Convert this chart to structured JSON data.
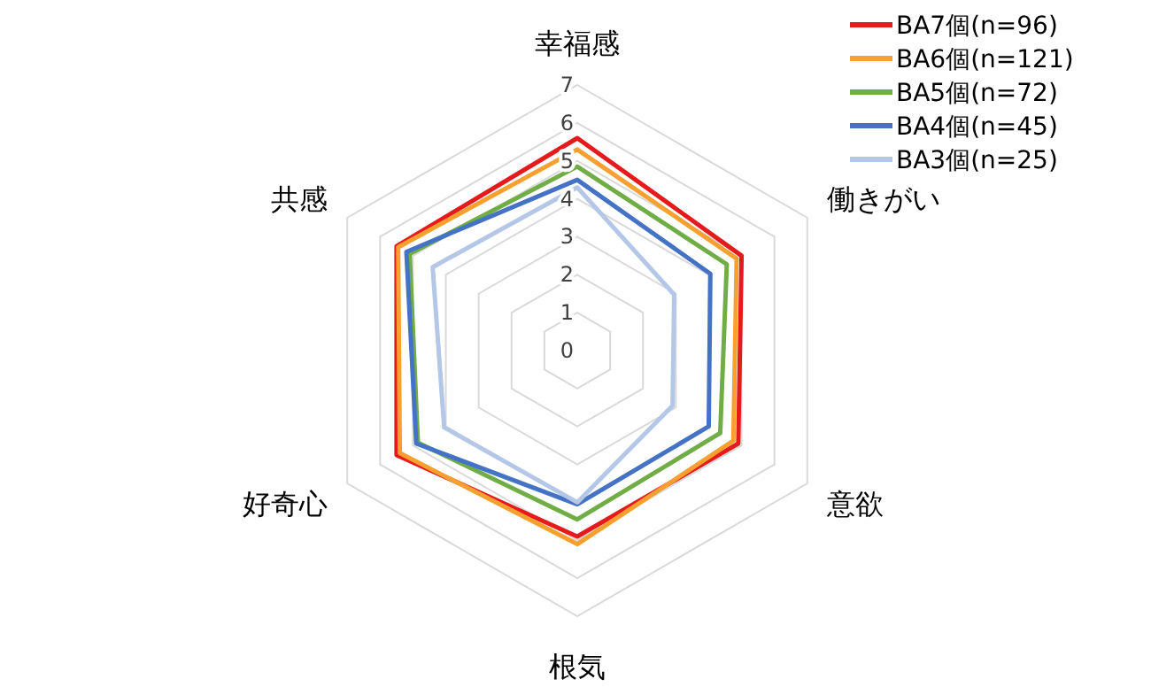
{
  "chart_data": {
    "type": "radar",
    "categories": [
      "幸福感",
      "働きがい",
      "意欲",
      "根気",
      "好奇心",
      "共感"
    ],
    "series": [
      {
        "name": "BA7個(n=96)",
        "color": "#e41a1c",
        "values": [
          5.6,
          5.0,
          4.9,
          4.9,
          5.5,
          5.5
        ]
      },
      {
        "name": "BA6個(n=121)",
        "color": "#f7a030",
        "values": [
          5.3,
          4.85,
          4.75,
          5.1,
          5.4,
          5.45
        ]
      },
      {
        "name": "BA5個(n=72)",
        "color": "#70ad47",
        "values": [
          4.85,
          4.55,
          4.35,
          4.45,
          4.85,
          5.1
        ]
      },
      {
        "name": "BA4個(n=45)",
        "color": "#4472c4",
        "values": [
          4.5,
          4.05,
          4.0,
          4.05,
          4.9,
          5.2
        ]
      },
      {
        "name": "BA3個(n=25)",
        "color": "#b4c7e7",
        "values": [
          4.3,
          2.95,
          2.9,
          4.0,
          4.05,
          4.4
        ]
      }
    ],
    "ylim": [
      0,
      7
    ],
    "yticks": [
      0,
      1,
      2,
      3,
      4,
      5,
      6,
      7
    ],
    "grid": true,
    "legend": "top right"
  }
}
